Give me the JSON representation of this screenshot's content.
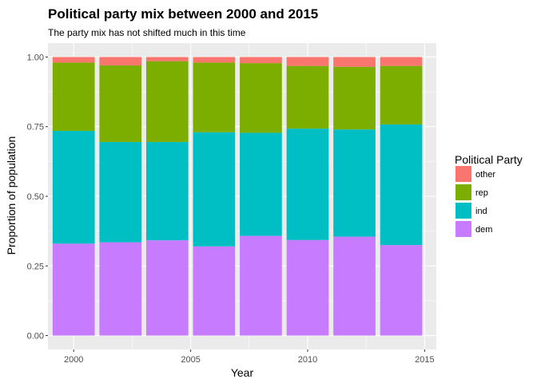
{
  "chart_data": {
    "type": "bar",
    "stacked": true,
    "title": "Political party mix between 2000 and 2015",
    "subtitle": "The party mix has not shifted much in this time",
    "xlabel": "Year",
    "ylabel": "Proportion of population",
    "xlim": [
      1998.9,
      2015.5
    ],
    "ylim": [
      -0.05,
      1.05
    ],
    "x_ticks": [
      2000,
      2005,
      2010,
      2015
    ],
    "y_ticks": [
      0,
      0.25,
      0.5,
      0.75,
      1
    ],
    "y_tick_labels": [
      "0.00",
      "0.25",
      "0.50",
      "0.75",
      "1.00"
    ],
    "grid": true,
    "legend_position": "right",
    "legend_title": "Political Party",
    "x": [
      2000,
      2002,
      2004,
      2006,
      2008,
      2010,
      2012,
      2014
    ],
    "series": [
      {
        "name": "dem",
        "color": "#C77CFF",
        "values": [
          0.33,
          0.335,
          0.342,
          0.32,
          0.358,
          0.343,
          0.355,
          0.325
        ]
      },
      {
        "name": "ind",
        "color": "#00BFC4",
        "values": [
          0.405,
          0.36,
          0.353,
          0.41,
          0.37,
          0.4,
          0.385,
          0.433
        ]
      },
      {
        "name": "rep",
        "color": "#7CAE00",
        "values": [
          0.245,
          0.275,
          0.29,
          0.25,
          0.25,
          0.225,
          0.225,
          0.21
        ]
      },
      {
        "name": "other",
        "color": "#F8766D",
        "values": [
          0.02,
          0.03,
          0.015,
          0.02,
          0.022,
          0.032,
          0.035,
          0.032
        ]
      }
    ],
    "legend_order": [
      "other",
      "rep",
      "ind",
      "dem"
    ],
    "colors": {
      "panel": "#EBEBEB",
      "grid": "#FFFFFF",
      "text": "#4D4D4D"
    }
  }
}
